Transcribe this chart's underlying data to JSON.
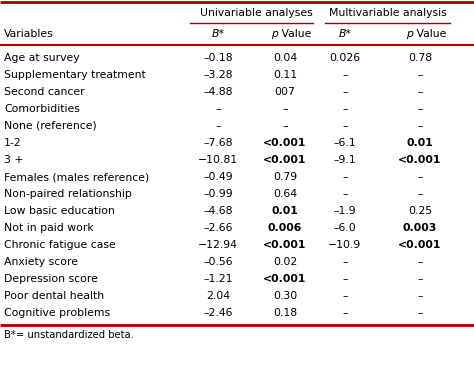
{
  "footnote": "B*= unstandardized beta.",
  "header_group1": "Univariable analyses",
  "header_group2": "Multivariable analysis",
  "rows": [
    {
      "var": "Age at survey",
      "uni_b": "–0.18",
      "uni_p": "0.04",
      "uni_p_bold": false,
      "multi_b": "0.026",
      "multi_p": "0.78",
      "multi_p_bold": false
    },
    {
      "var": "Supplementary treatment",
      "uni_b": "–3.28",
      "uni_p": "0.11",
      "uni_p_bold": false,
      "multi_b": "–",
      "multi_p": "–",
      "multi_p_bold": false
    },
    {
      "var": "Second cancer",
      "uni_b": "–4.88",
      "uni_p": "007",
      "uni_p_bold": false,
      "multi_b": "–",
      "multi_p": "–",
      "multi_p_bold": false
    },
    {
      "var": "Comorbidities",
      "uni_b": "–",
      "uni_p": "–",
      "uni_p_bold": false,
      "multi_b": "–",
      "multi_p": "–",
      "multi_p_bold": false
    },
    {
      "var": "None (reference)",
      "uni_b": "–",
      "uni_p": "–",
      "uni_p_bold": false,
      "multi_b": "–",
      "multi_p": "–",
      "multi_p_bold": false
    },
    {
      "var": "1-2",
      "uni_b": "–7.68",
      "uni_p": "<0.001",
      "uni_p_bold": true,
      "multi_b": "–6.1",
      "multi_p": "0.01",
      "multi_p_bold": true
    },
    {
      "var": "3 +",
      "uni_b": "−10.81",
      "uni_p": "<0.001",
      "uni_p_bold": true,
      "multi_b": "–9.1",
      "multi_p": "<0.001",
      "multi_p_bold": true
    },
    {
      "var": "Females (males reference)",
      "uni_b": "–0.49",
      "uni_p": "0.79",
      "uni_p_bold": false,
      "multi_b": "–",
      "multi_p": "–",
      "multi_p_bold": false
    },
    {
      "var": "Non-paired relationship",
      "uni_b": "–0.99",
      "uni_p": "0.64",
      "uni_p_bold": false,
      "multi_b": "–",
      "multi_p": "–",
      "multi_p_bold": false
    },
    {
      "var": "Low basic education",
      "uni_b": "–4.68",
      "uni_p": "0.01",
      "uni_p_bold": true,
      "multi_b": "–1.9",
      "multi_p": "0.25",
      "multi_p_bold": false
    },
    {
      "var": "Not in paid work",
      "uni_b": "–2.66",
      "uni_p": "0.006",
      "uni_p_bold": true,
      "multi_b": "–6.0",
      "multi_p": "0.003",
      "multi_p_bold": true
    },
    {
      "var": "Chronic fatigue case",
      "uni_b": "−12.94",
      "uni_p": "<0.001",
      "uni_p_bold": true,
      "multi_b": "−10.9",
      "multi_p": "<0.001",
      "multi_p_bold": true
    },
    {
      "var": "Anxiety score",
      "uni_b": "–0.56",
      "uni_p": "0.02",
      "uni_p_bold": false,
      "multi_b": "–",
      "multi_p": "–",
      "multi_p_bold": false
    },
    {
      "var": "Depression score",
      "uni_b": "–1.21",
      "uni_p": "<0.001",
      "uni_p_bold": true,
      "multi_b": "–",
      "multi_p": "–",
      "multi_p_bold": false
    },
    {
      "var": "Poor dental health",
      "uni_b": "2.04",
      "uni_p": "0.30",
      "uni_p_bold": false,
      "multi_b": "–",
      "multi_p": "–",
      "multi_p_bold": false
    },
    {
      "var": "Cognitive problems",
      "uni_b": "–2.46",
      "uni_p": "0.18",
      "uni_p_bold": false,
      "multi_b": "–",
      "multi_p": "–",
      "multi_p_bold": false
    }
  ],
  "bg_color": "#ffffff",
  "border_color": "#aa0000",
  "text_color": "#000000",
  "fs": 7.8,
  "fs_footnote": 7.2
}
